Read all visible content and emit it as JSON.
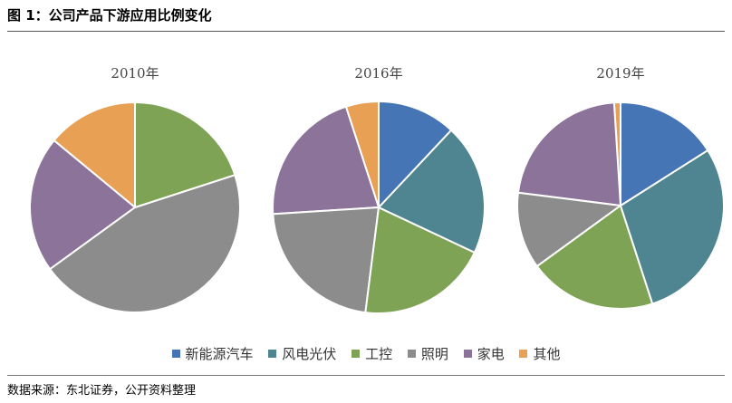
{
  "figure": {
    "title": "图 1：公司产品下游应用比例变化",
    "source": "数据来源：东北证券，公开资料整理"
  },
  "chart_data": [
    {
      "type": "pie",
      "title": "2010年",
      "labels": [
        "新能源汽车",
        "风电光伏",
        "工控",
        "照明",
        "家电",
        "其他"
      ],
      "values": [
        0,
        0,
        20,
        45,
        21,
        14
      ],
      "colors": [
        "#4575b4",
        "#4e8590",
        "#7ea354",
        "#8c8c8c",
        "#8c7399",
        "#e8a055"
      ]
    },
    {
      "type": "pie",
      "title": "2016年",
      "labels": [
        "新能源汽车",
        "风电光伏",
        "工控",
        "照明",
        "家电",
        "其他"
      ],
      "values": [
        12,
        20,
        20,
        22,
        21,
        5
      ],
      "colors": [
        "#4575b4",
        "#4e8590",
        "#7ea354",
        "#8c8c8c",
        "#8c7399",
        "#e8a055"
      ]
    },
    {
      "type": "pie",
      "title": "2019年",
      "labels": [
        "新能源汽车",
        "风电光伏",
        "工控",
        "照明",
        "家电",
        "其他"
      ],
      "values": [
        16,
        29,
        20,
        12,
        22,
        1
      ],
      "colors": [
        "#4575b4",
        "#4e8590",
        "#7ea354",
        "#8c8c8c",
        "#8c7399",
        "#e8a055"
      ]
    }
  ],
  "legend": [
    {
      "label": "新能源汽车",
      "color": "#4575b4"
    },
    {
      "label": "风电光伏",
      "color": "#4e8590"
    },
    {
      "label": "工控",
      "color": "#7ea354"
    },
    {
      "label": "照明",
      "color": "#8c8c8c"
    },
    {
      "label": "家电",
      "color": "#8c7399"
    },
    {
      "label": "其他",
      "color": "#e8a055"
    }
  ]
}
